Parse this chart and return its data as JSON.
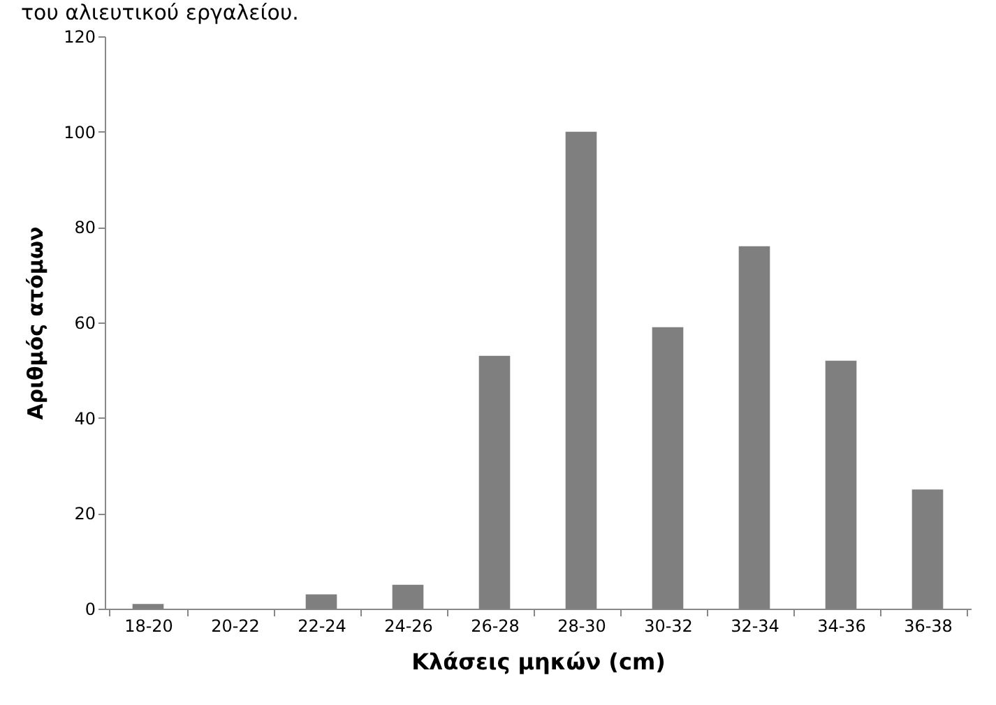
{
  "chart_data": {
    "type": "bar",
    "xlabel": "Κλάσεις μηκών (cm)",
    "ylabel": "Αριθμός ατόμων",
    "annotations": [
      "του αλιευτικού εργαλείου."
    ],
    "categories": [
      "18-20",
      "20-22",
      "22-24",
      "24-26",
      "26-28",
      "28-30",
      "30-32",
      "32-34",
      "34-36",
      "36-38"
    ],
    "values": [
      1,
      0,
      3,
      5,
      53,
      100,
      59,
      76,
      52,
      25
    ],
    "color": "#7f7f7f",
    "ylim": [
      0,
      120
    ],
    "yticks": [
      0,
      20,
      40,
      60,
      80,
      100,
      120
    ],
    "grid": false
  }
}
